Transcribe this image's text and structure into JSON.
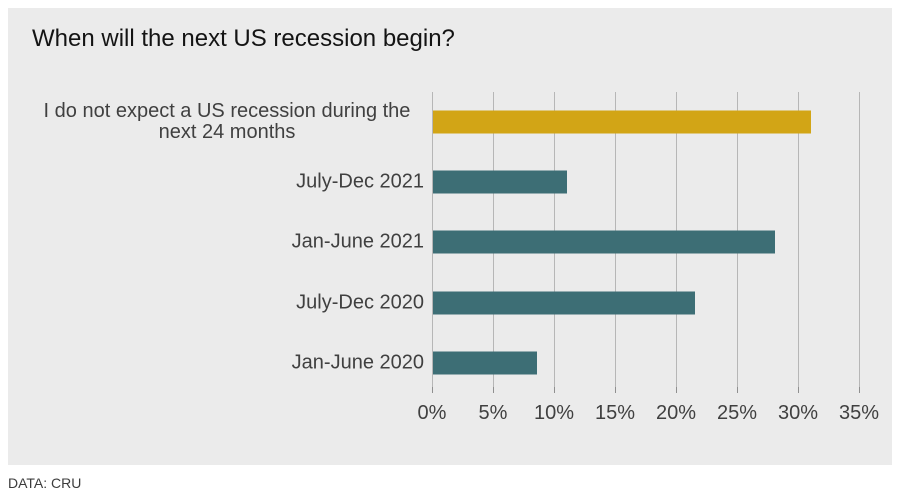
{
  "chart_data": {
    "type": "bar",
    "orientation": "horizontal",
    "title": "When will the next US recession begin?",
    "categories": [
      "I do not expect a US recession during the\nnext 24 months",
      "July-Dec 2021",
      "Jan-June 2021",
      "July-Dec 2020",
      "Jan-June 2020"
    ],
    "values": [
      31,
      11,
      28,
      21.5,
      8.5
    ],
    "unit": "%",
    "colors": [
      "#d2a516",
      "#3d6e75",
      "#3d6e75",
      "#3d6e75",
      "#3d6e75"
    ],
    "xlim": [
      0,
      35
    ],
    "x_tick_values": [
      0,
      5,
      10,
      15,
      20,
      25,
      30,
      35
    ],
    "x_tick_labels": [
      "0%",
      "5%",
      "10%",
      "15%",
      "20%",
      "25%",
      "30%",
      "35%"
    ],
    "grid": true,
    "legend": "none",
    "plot_background": "#ebebeb"
  },
  "footer": {
    "source": "DATA: CRU"
  }
}
